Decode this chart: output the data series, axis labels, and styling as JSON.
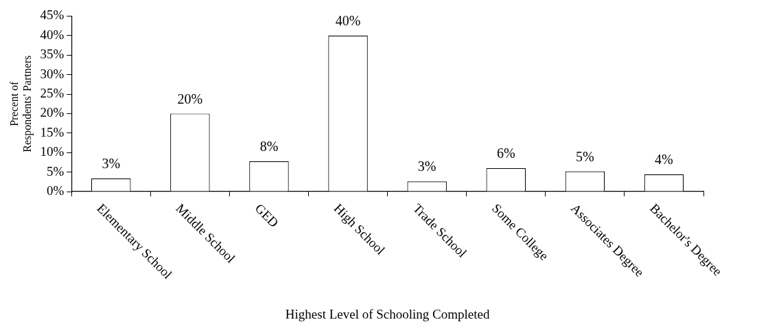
{
  "chart_data": {
    "type": "bar",
    "xlabel": "Highest Level of Schooling Completed",
    "ylabel": "Precent of\nRespondents' Partners",
    "categories": [
      "Elementary School",
      "Middle School",
      "GED",
      "High School",
      "Trade School",
      "Some College",
      "Associates Degree",
      "Bachelor's Degree"
    ],
    "values": [
      3.4,
      20,
      7.8,
      40,
      2.6,
      6.0,
      5.2,
      4.4
    ],
    "value_labels": [
      "3%",
      "20%",
      "8%",
      "40%",
      "3%",
      "6%",
      "5%",
      "4%"
    ],
    "color": "#ffffff",
    "ylim": [
      0,
      45
    ],
    "yticks": [
      {
        "value": 0,
        "label": "0%"
      },
      {
        "value": 5,
        "label": "5%"
      },
      {
        "value": 10,
        "label": "10%"
      },
      {
        "value": 15,
        "label": "15%"
      },
      {
        "value": 20,
        "label": "20%"
      },
      {
        "value": 25,
        "label": "25%"
      },
      {
        "value": 30,
        "label": "30%"
      },
      {
        "value": 35,
        "label": "35%"
      },
      {
        "value": 40,
        "label": "40%"
      },
      {
        "value": 45,
        "label": "45%"
      }
    ],
    "grid": false,
    "legend": false
  }
}
